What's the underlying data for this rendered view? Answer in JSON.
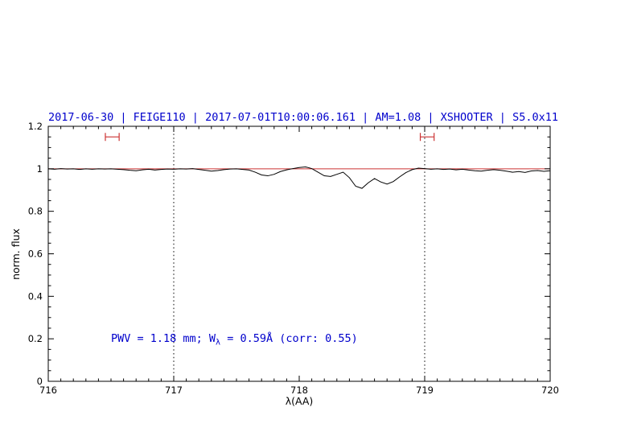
{
  "page": {
    "background": "#ffffff",
    "accent_blue": "#0000cc",
    "accent_red": "#cc3333"
  },
  "chart_data": {
    "type": "line",
    "title": "2017-06-30 | FEIGE110 | 2017-07-01T10:00:06.161 | AM=1.08 | XSHOOTER | S5.0x11",
    "title_color": "#0000cc",
    "xlabel": "λ(AA)",
    "ylabel": "norm. flux",
    "xlim": [
      716,
      720
    ],
    "ylim": [
      0,
      1.2
    ],
    "grid": "off",
    "legend": "none",
    "xticks": {
      "values": [
        716,
        717,
        718,
        719,
        720
      ],
      "labels": [
        "716",
        "717",
        "718",
        "719",
        "720"
      ]
    },
    "yticks": {
      "values": [
        0,
        0.2,
        0.4,
        0.6,
        0.8,
        1,
        1.2
      ],
      "labels": [
        "0",
        "0.2",
        "0.4",
        "0.6",
        "0.8",
        "1",
        "1.2"
      ]
    },
    "x_minor_step": 0.1,
    "y_minor_step": 0.05,
    "vlines": {
      "x": [
        717,
        719
      ],
      "color": "#000000",
      "style": "dotted"
    },
    "reference_line": {
      "y": 1.0,
      "color": "#cc3333"
    },
    "markers": [
      {
        "type": "errorbar-h",
        "x_center": 716.51,
        "half_width": 0.055,
        "y": 1.15,
        "color": "#cc3333"
      },
      {
        "type": "errorbar-h",
        "x_center": 719.02,
        "half_width": 0.055,
        "y": 1.15,
        "color": "#cc3333"
      }
    ],
    "annotation": {
      "prefix": "PWV = 1.18 mm; W",
      "sub": "λ",
      "suffix": " = 0.59Å (corr: 0.55)",
      "x": 716.5,
      "y": 0.2,
      "color": "#0000cc"
    },
    "series": [
      {
        "name": "normalized-spectrum",
        "color": "#000000",
        "x": [
          716.0,
          716.05,
          716.1,
          716.15,
          716.2,
          716.25,
          716.3,
          716.35,
          716.4,
          716.45,
          716.5,
          716.55,
          716.6,
          716.65,
          716.7,
          716.75,
          716.8,
          716.85,
          716.9,
          716.95,
          717.0,
          717.05,
          717.1,
          717.15,
          717.2,
          717.25,
          717.3,
          717.35,
          717.4,
          717.45,
          717.5,
          717.55,
          717.6,
          717.65,
          717.7,
          717.75,
          717.8,
          717.85,
          717.9,
          717.95,
          718.0,
          718.05,
          718.1,
          718.15,
          718.2,
          718.25,
          718.3,
          718.35,
          718.4,
          718.45,
          718.5,
          718.55,
          718.6,
          718.65,
          718.7,
          718.75,
          718.8,
          718.85,
          718.9,
          718.95,
          719.0,
          719.05,
          719.1,
          719.15,
          719.2,
          719.25,
          719.3,
          719.35,
          719.4,
          719.45,
          719.5,
          719.55,
          719.6,
          719.65,
          719.7,
          719.75,
          719.8,
          719.85,
          719.9,
          719.95,
          720.0
        ],
        "y": [
          1.0,
          0.998,
          1.001,
          0.999,
          1.0,
          0.997,
          1.0,
          0.998,
          1.0,
          0.999,
          1.0,
          0.998,
          0.996,
          0.993,
          0.991,
          0.995,
          0.998,
          0.994,
          0.997,
          0.999,
          0.998,
          1.0,
          0.999,
          1.001,
          0.997,
          0.993,
          0.989,
          0.992,
          0.996,
          0.999,
          1.0,
          0.997,
          0.994,
          0.984,
          0.971,
          0.967,
          0.974,
          0.987,
          0.995,
          1.001,
          1.006,
          1.009,
          1.001,
          0.984,
          0.967,
          0.964,
          0.974,
          0.984,
          0.958,
          0.918,
          0.908,
          0.934,
          0.954,
          0.938,
          0.928,
          0.94,
          0.962,
          0.982,
          0.996,
          1.003,
          1.001,
          0.998,
          1.0,
          0.997,
          0.999,
          0.995,
          0.998,
          0.994,
          0.991,
          0.989,
          0.993,
          0.996,
          0.993,
          0.989,
          0.984,
          0.987,
          0.983,
          0.99,
          0.992,
          0.988,
          0.991
        ]
      }
    ]
  }
}
